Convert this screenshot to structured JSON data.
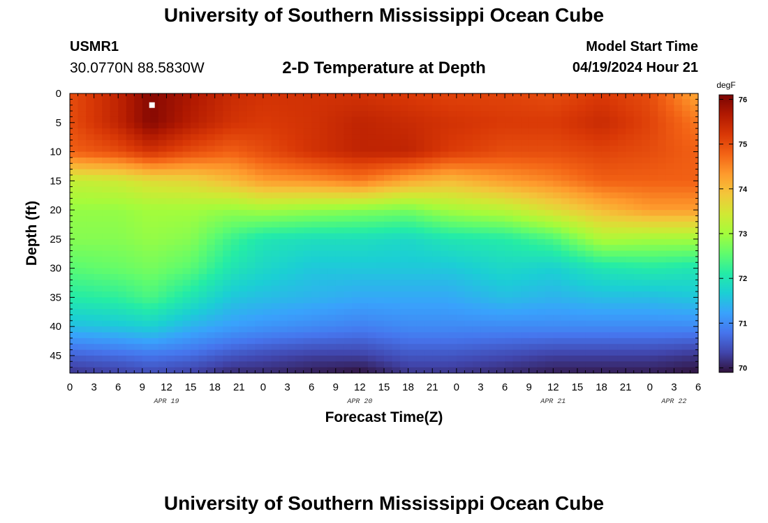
{
  "header": {
    "title": "University of Southern Mississippi Ocean Cube",
    "station_id": "USMR1",
    "coordinates": "30.0770N  88.5830W",
    "subtitle": "2-D Temperature at Depth",
    "model_start_label": "Model Start Time",
    "model_start_value": "04/19/2024 Hour 21"
  },
  "footer": {
    "title": "University of Southern Mississippi Ocean Cube"
  },
  "chart_data": {
    "type": "heatmap",
    "title": "2-D Temperature at Depth",
    "xlabel": "Forecast Time(Z)",
    "ylabel": "Depth (ft)",
    "colorbar_unit": "degF",
    "colorbar_ticks": [
      70,
      71,
      72,
      73,
      74,
      75,
      76
    ],
    "colorbar_range": [
      69.9,
      76.1
    ],
    "colormap": [
      "#30123b",
      "#4145ab",
      "#4675ed",
      "#39a2fc",
      "#1bcfd4",
      "#24eca6",
      "#61fc6c",
      "#a4fc3b",
      "#d1e834",
      "#f3c63a",
      "#fe9b2d",
      "#f36315",
      "#d93806",
      "#b11901",
      "#7a0403"
    ],
    "x_hours_range": [
      0,
      78
    ],
    "x_tick_labels": [
      "0",
      "3",
      "6",
      "9",
      "12",
      "15",
      "18",
      "21",
      "0",
      "3",
      "6",
      "9",
      "12",
      "15",
      "18",
      "21",
      "0",
      "3",
      "6",
      "9",
      "12",
      "15",
      "18",
      "21",
      "0",
      "3",
      "6"
    ],
    "date_labels": [
      {
        "label": "APR 19",
        "hour": 12
      },
      {
        "label": "APR 20",
        "hour": 36
      },
      {
        "label": "APR 21",
        "hour": 60
      },
      {
        "label": "APR 22",
        "hour": 75
      }
    ],
    "y_range": [
      0,
      48
    ],
    "y_ticks": [
      0,
      5,
      10,
      15,
      20,
      25,
      30,
      35,
      40,
      45
    ],
    "marker": {
      "hour": 10.2,
      "depth": 2
    },
    "profile_hours": [
      0,
      6,
      10,
      15,
      20,
      24,
      30,
      36,
      42,
      47,
      54,
      60,
      66,
      72,
      78
    ],
    "profile_depths": [
      0,
      5,
      10,
      15,
      20,
      25,
      30,
      35,
      40,
      45,
      48
    ],
    "temperatures_degF": [
      [
        75.0,
        75.0,
        74.8,
        73.3,
        72.9,
        72.8,
        72.5,
        72.1,
        71.5,
        70.6,
        70.2
      ],
      [
        75.5,
        75.5,
        75.0,
        73.4,
        72.9,
        72.8,
        72.6,
        72.2,
        71.6,
        70.7,
        70.3
      ],
      [
        76.0,
        76.0,
        75.3,
        73.6,
        73.0,
        72.9,
        72.7,
        72.4,
        71.7,
        70.8,
        70.4
      ],
      [
        75.7,
        75.6,
        75.0,
        73.7,
        73.0,
        72.8,
        72.5,
        72.0,
        71.4,
        70.7,
        70.3
      ],
      [
        75.4,
        75.3,
        74.8,
        74.0,
        72.9,
        72.3,
        72.0,
        71.6,
        71.2,
        70.5,
        70.1
      ],
      [
        75.3,
        75.2,
        75.0,
        74.3,
        73.0,
        72.0,
        71.8,
        71.5,
        71.1,
        70.4,
        70.1
      ],
      [
        75.3,
        75.3,
        75.3,
        74.4,
        72.9,
        71.9,
        71.6,
        71.4,
        71.0,
        70.3,
        70.0
      ],
      [
        75.3,
        75.5,
        75.5,
        74.6,
        72.8,
        71.9,
        71.6,
        71.3,
        70.9,
        70.3,
        69.9
      ],
      [
        75.2,
        75.4,
        75.5,
        74.2,
        72.7,
        71.8,
        71.6,
        71.3,
        71.0,
        70.5,
        70.2
      ],
      [
        75.1,
        75.3,
        75.2,
        74.0,
        73.0,
        72.0,
        71.6,
        71.3,
        71.0,
        70.5,
        70.2
      ],
      [
        75.1,
        75.2,
        75.0,
        74.3,
        73.2,
        72.1,
        71.8,
        71.5,
        71.0,
        70.4,
        70.1
      ],
      [
        75.0,
        75.2,
        75.0,
        74.5,
        73.6,
        72.4,
        71.7,
        71.4,
        71.0,
        70.3,
        70.0
      ],
      [
        75.2,
        75.4,
        75.1,
        74.8,
        74.0,
        73.1,
        72.0,
        71.5,
        71.0,
        70.3,
        70.0
      ],
      [
        75.0,
        75.1,
        75.0,
        74.8,
        74.3,
        73.0,
        72.1,
        71.5,
        71.0,
        70.3,
        70.0
      ],
      [
        74.2,
        74.6,
        74.8,
        74.8,
        74.3,
        73.0,
        72.0,
        71.6,
        71.0,
        70.2,
        69.9
      ]
    ]
  }
}
